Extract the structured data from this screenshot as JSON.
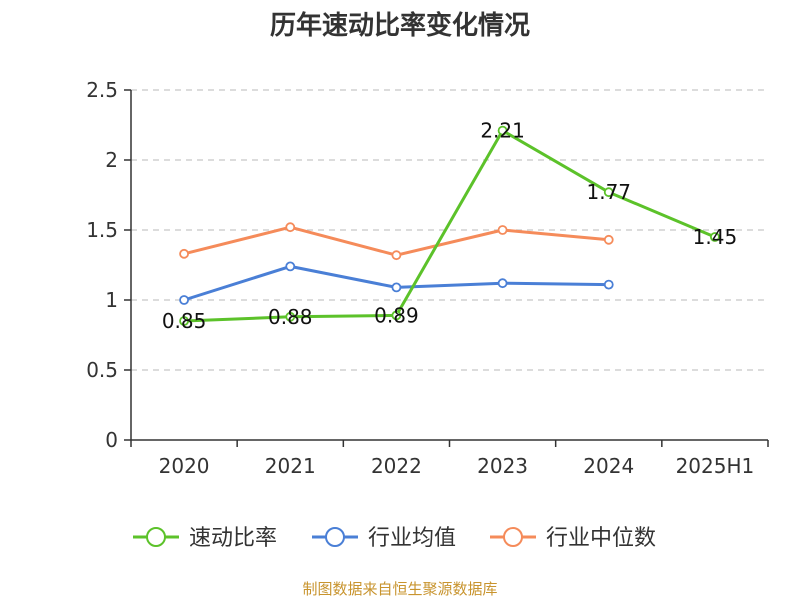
{
  "chart_data": {
    "type": "line",
    "title": "历年速动比率变化情况",
    "categories": [
      "2020",
      "2021",
      "2022",
      "2023",
      "2024",
      "2025H1"
    ],
    "yticks": [
      "0",
      "0.5",
      "1",
      "1.5",
      "2",
      "2.5"
    ],
    "ylim": [
      0,
      2.5
    ],
    "grid": true,
    "legend_position": "bottom",
    "series": [
      {
        "name": "速动比率",
        "color": "#5cc22a",
        "values": [
          0.85,
          0.88,
          0.89,
          2.21,
          1.77,
          1.45
        ],
        "labels": [
          "0.85",
          "0.88",
          "0.89",
          "2.21",
          "1.77",
          "1.45"
        ]
      },
      {
        "name": "行业均值",
        "color": "#4a7fd6",
        "values": [
          1.0,
          1.24,
          1.09,
          1.12,
          1.11,
          null
        ]
      },
      {
        "name": "行业中位数",
        "color": "#f58b5a",
        "values": [
          1.33,
          1.52,
          1.32,
          1.5,
          1.43,
          null
        ]
      }
    ]
  },
  "source": "制图数据来自恒生聚源数据库"
}
